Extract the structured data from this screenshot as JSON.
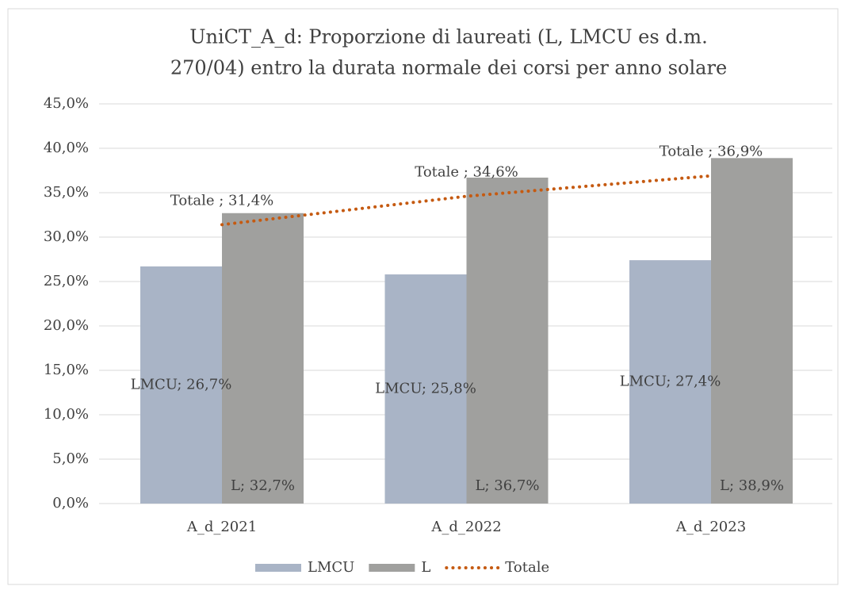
{
  "chart_data": {
    "type": "bar",
    "title": [
      "UniCT_A_d: Proporzione di laureati (L, LMCU es d.m.",
      "270/04) entro la durata normale dei corsi per anno solare"
    ],
    "categories": [
      "A_d_2021",
      "A_d_2022",
      "A_d_2023"
    ],
    "series": [
      {
        "name": "LMCU",
        "type": "bar",
        "color": "#a9b4c6",
        "values": [
          26.7,
          25.8,
          27.4
        ],
        "value_labels": [
          "LMCU; 26,7%",
          "LMCU; 25,8%",
          "LMCU; 27,4%"
        ]
      },
      {
        "name": "L",
        "type": "bar",
        "color": "#a0a09e",
        "values": [
          32.7,
          36.7,
          38.9
        ],
        "value_labels": [
          "L; 32,7%",
          "L; 36,7%",
          "L; 38,9%"
        ]
      },
      {
        "name": "Totale",
        "type": "line",
        "style": "dotted",
        "color": "#c55a11",
        "values": [
          31.4,
          34.6,
          36.9
        ],
        "value_labels": [
          "Totale ; 31,4%",
          "Totale ; 34,6%",
          "Totale ; 36,9%"
        ]
      }
    ],
    "ylim": [
      0,
      45
    ],
    "yticks": [
      {
        "value": 0,
        "label": "0,0%"
      },
      {
        "value": 5,
        "label": "5,0%"
      },
      {
        "value": 10,
        "label": "10,0%"
      },
      {
        "value": 15,
        "label": "15,0%"
      },
      {
        "value": 20,
        "label": "20,0%"
      },
      {
        "value": 25,
        "label": "25,0%"
      },
      {
        "value": 30,
        "label": "30,0%"
      },
      {
        "value": 35,
        "label": "35,0%"
      },
      {
        "value": 40,
        "label": "40,0%"
      },
      {
        "value": 45,
        "label": "45,0%"
      }
    ],
    "grid": true,
    "legend": "bottom"
  }
}
